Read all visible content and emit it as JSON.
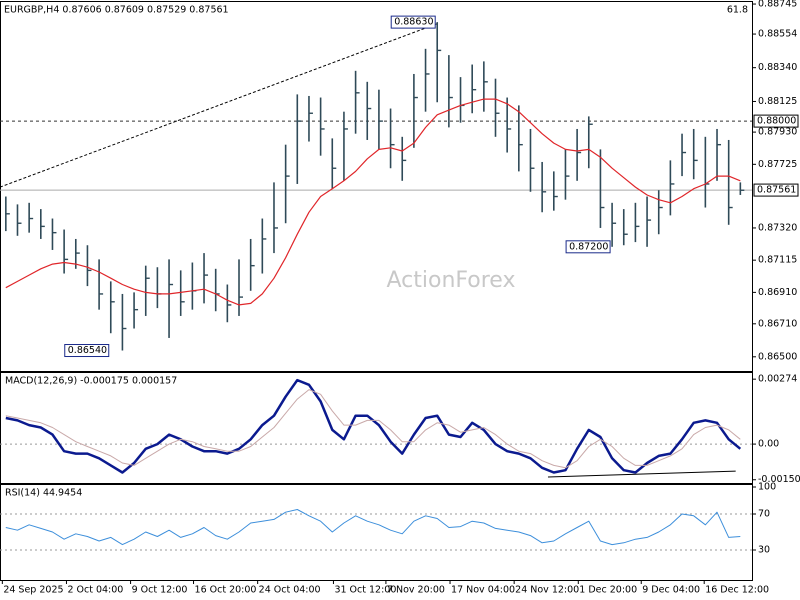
{
  "header": "EURGBP,H4 0.87606 0.87609 0.87529 0.87561",
  "corner_label": "61.8",
  "watermark": "ActionForex",
  "chart_data": [
    {
      "type": "ohlc",
      "color": "#2f4a58",
      "xlim": [
        -0.5,
        64
      ],
      "ylim": [
        0.86416,
        0.88758
      ],
      "yticks": [
        0.88745,
        0.88554,
        {
          "value": 0.8834,
          "label": "0.88340"
        },
        0.88125,
        {
          "value": 0.8793,
          "label": "0.87930"
        },
        0.87725,
        {
          "value": 0.8732,
          "label": "0.87320"
        },
        0.87115,
        {
          "value": 0.8691,
          "label": "0.86910"
        },
        {
          "value": 0.8671,
          "label": "0.86710"
        },
        {
          "value": 0.865,
          "label": "0.86500"
        }
      ],
      "high": [
        0.8752,
        0.8747,
        0.8748,
        0.8744,
        0.8738,
        0.8731,
        0.8725,
        0.8721,
        0.8712,
        0.8698,
        0.869,
        0.8691,
        0.8708,
        0.8707,
        0.8712,
        0.8705,
        0.871,
        0.8716,
        0.8706,
        0.8696,
        0.8712,
        0.8725,
        0.8738,
        0.8761,
        0.8785,
        0.8817,
        0.8816,
        0.8815,
        0.8789,
        0.8806,
        0.8832,
        0.8825,
        0.882,
        0.8808,
        0.879,
        0.883,
        0.8846,
        0.8863,
        0.8842,
        0.8828,
        0.8836,
        0.8838,
        0.8827,
        0.8815,
        0.881,
        0.8795,
        0.8774,
        0.8768,
        0.8782,
        0.8795,
        0.8803,
        0.8782,
        0.8748,
        0.8744,
        0.8748,
        0.8752,
        0.8756,
        0.8775,
        0.8792,
        0.8795,
        0.879,
        0.8795,
        0.8788,
        0.8761
      ],
      "low": [
        0.873,
        0.8727,
        0.8729,
        0.8725,
        0.8718,
        0.8703,
        0.8706,
        0.8695,
        0.868,
        0.8665,
        0.8654,
        0.8668,
        0.8676,
        0.8681,
        0.8662,
        0.8676,
        0.868,
        0.8684,
        0.8679,
        0.8672,
        0.8676,
        0.8692,
        0.8703,
        0.8716,
        0.8735,
        0.876,
        0.8787,
        0.8778,
        0.8757,
        0.8762,
        0.8792,
        0.8788,
        0.8782,
        0.877,
        0.8762,
        0.8783,
        0.8806,
        0.8812,
        0.8796,
        0.8799,
        0.8805,
        0.8806,
        0.879,
        0.878,
        0.8768,
        0.8755,
        0.8742,
        0.8743,
        0.875,
        0.8762,
        0.877,
        0.8732,
        0.872,
        0.8721,
        0.8723,
        0.872,
        0.8728,
        0.874,
        0.8765,
        0.8763,
        0.8745,
        0.8762,
        0.8734,
        0.8753
      ],
      "close": [
        0.8741,
        0.8735,
        0.8738,
        0.8733,
        0.8729,
        0.8712,
        0.8716,
        0.8705,
        0.869,
        0.8685,
        0.8668,
        0.868,
        0.87,
        0.869,
        0.8696,
        0.8685,
        0.8692,
        0.8702,
        0.869,
        0.8683,
        0.8688,
        0.8708,
        0.8725,
        0.8732,
        0.8765,
        0.88,
        0.8805,
        0.8795,
        0.877,
        0.8795,
        0.8818,
        0.8808,
        0.88,
        0.8785,
        0.8775,
        0.8815,
        0.883,
        0.8845,
        0.8815,
        0.881,
        0.882,
        0.8825,
        0.8805,
        0.8795,
        0.8785,
        0.877,
        0.8755,
        0.8752,
        0.8765,
        0.878,
        0.8798,
        0.8745,
        0.8735,
        0.8728,
        0.8733,
        0.8737,
        0.8745,
        0.876,
        0.878,
        0.8775,
        0.876,
        0.8785,
        0.8745,
        0.8756
      ],
      "series": [
        {
          "color": "#e0262a",
          "values": [
            0.8694,
            0.8698,
            0.8702,
            0.8706,
            0.8709,
            0.871,
            0.8709,
            0.8707,
            0.8704,
            0.87,
            0.8696,
            0.8693,
            0.8691,
            0.869,
            0.869,
            0.8691,
            0.8692,
            0.8693,
            0.869,
            0.8686,
            0.8683,
            0.8684,
            0.869,
            0.87,
            0.8713,
            0.8728,
            0.8742,
            0.8752,
            0.8757,
            0.8762,
            0.8768,
            0.8776,
            0.8782,
            0.8783,
            0.8781,
            0.8786,
            0.8796,
            0.8804,
            0.8807,
            0.881,
            0.8812,
            0.8814,
            0.8814,
            0.8811,
            0.8806,
            0.8799,
            0.8792,
            0.8786,
            0.8782,
            0.8781,
            0.8782,
            0.8777,
            0.877,
            0.8764,
            0.8758,
            0.8753,
            0.875,
            0.8748,
            0.8752,
            0.8757,
            0.876,
            0.8765,
            0.8765,
            0.8762
          ]
        }
      ],
      "levels": [
        {
          "value": 0.88,
          "label": "0.88000",
          "style": "dashed"
        },
        {
          "value": 0.87561,
          "label": "0.87561",
          "style": "solid"
        }
      ],
      "annotations": [
        {
          "x": 37,
          "value": 0.8863,
          "label": "0.88630"
        },
        {
          "x": 52,
          "value": 0.872,
          "label": "0.87200"
        },
        {
          "x": 9,
          "value": 0.8654,
          "label": "0.86540"
        }
      ],
      "trendline": {
        "x": [
          -0.5,
          37
        ],
        "y": [
          0.8758,
          0.8862
        ]
      }
    },
    {
      "type": "line",
      "title": "MACD(12,26,9) -0.000175 0.000157",
      "xlim": [
        -0.5,
        64
      ],
      "ylim": [
        -0.0016,
        0.003
      ],
      "yticks": [
        0.00274,
        {
          "value": 0,
          "label": "0.00"
        },
        -0.001505
      ],
      "dashed_levels": [
        0
      ],
      "series": [
        {
          "color": "#0b1a8f",
          "width": 2.5,
          "values": [
            0.0011,
            0.001,
            0.0008,
            0.0007,
            0.0004,
            -0.0003,
            -0.0004,
            -0.0004,
            -0.0006,
            -0.0009,
            -0.0012,
            -0.0008,
            -0.0002,
            0,
            0.0004,
            0.0002,
            -0.0001,
            -0.0003,
            -0.0003,
            -0.0004,
            -0.0002,
            0.0002,
            0.0008,
            0.0012,
            0.002,
            0.0027,
            0.0025,
            0.0018,
            0.0006,
            0.0002,
            0.0012,
            0.0012,
            0.0008,
            0.0001,
            -0.0004,
            0.0004,
            0.0011,
            0.0012,
            0.0004,
            0.0003,
            0.0009,
            0.0006,
            0,
            -0.0003,
            -0.0004,
            -0.0006,
            -0.001,
            -0.0012,
            -0.0011,
            -0.0002,
            0.0006,
            0.0003,
            -0.0006,
            -0.0011,
            -0.0012,
            -0.0008,
            -0.0005,
            -0.0004,
            0.0002,
            0.0009,
            0.001,
            0.0009,
            0.0002,
            -0.0002
          ]
        },
        {
          "color": "#c9a9a9",
          "width": 1,
          "values": [
            0.0012,
            0.0011,
            0.001,
            0.0009,
            0.0007,
            0.0004,
            0.0001,
            -0.0001,
            -0.0003,
            -0.0005,
            -0.0008,
            -0.0009,
            -0.0006,
            -0.0003,
            0,
            0.0002,
            0.0001,
            -0.0001,
            -0.0002,
            -0.0003,
            -0.0003,
            -0.0001,
            0.0003,
            0.0007,
            0.0013,
            0.0019,
            0.0023,
            0.0021,
            0.0014,
            0.0008,
            0.0008,
            0.001,
            0.001,
            0.0006,
            0.0001,
            0.0001,
            0.0006,
            0.0009,
            0.0008,
            0.0005,
            0.0006,
            0.0007,
            0.0004,
            0,
            -0.0003,
            -0.0004,
            -0.0007,
            -0.0009,
            -0.001,
            -0.0007,
            -0.0001,
            0.0002,
            -0.0001,
            -0.0006,
            -0.0009,
            -0.0009,
            -0.0007,
            -0.0005,
            -0.0002,
            0.0004,
            0.0007,
            0.0008,
            0.0006,
            0.0002
          ]
        }
      ],
      "trendline": {
        "x": [
          46.5,
          62.6
        ],
        "y": [
          -0.00139,
          -0.00114
        ]
      }
    },
    {
      "type": "line",
      "title": "RSI(14) 44.9454",
      "xlim": [
        -0.5,
        64
      ],
      "ylim": [
        0,
        100
      ],
      "yticks": [
        100,
        70,
        30
      ],
      "dashed_levels": [
        70,
        30
      ],
      "series": [
        {
          "color": "#3d8fdb",
          "width": 1,
          "values": [
            55,
            52,
            58,
            54,
            50,
            42,
            48,
            45,
            40,
            44,
            36,
            42,
            50,
            45,
            52,
            44,
            48,
            55,
            46,
            42,
            50,
            60,
            62,
            64,
            72,
            75,
            68,
            62,
            50,
            60,
            68,
            62,
            58,
            52,
            48,
            62,
            68,
            65,
            55,
            56,
            62,
            60,
            54,
            52,
            50,
            46,
            38,
            40,
            48,
            55,
            62,
            40,
            36,
            38,
            42,
            44,
            50,
            58,
            70,
            68,
            58,
            72,
            44,
            45
          ]
        }
      ],
      "xticks": [
        {
          "value": -0.3,
          "label": "24 Sep 2025"
        },
        {
          "value": 5.2,
          "label": "2 Oct 04:00"
        },
        {
          "value": 10.7,
          "label": "9 Oct 12:00"
        },
        {
          "value": 16.1,
          "label": "16 Oct 20:00"
        },
        {
          "value": 21.6,
          "label": "24 Oct 04:00"
        },
        {
          "value": 28.1,
          "label": "31 Oct 12:00"
        },
        {
          "value": 32.6,
          "label": "7 Nov 20:00"
        },
        {
          "value": 38.1,
          "label": "17 Nov 04:00"
        },
        {
          "value": 43.6,
          "label": "24 Nov 12:00"
        },
        {
          "value": 49.1,
          "label": "1 Dec 20:00"
        },
        {
          "value": 54.5,
          "label": "9 Dec 04:00"
        },
        {
          "value": 59.9,
          "label": "16 Dec 12:00"
        }
      ]
    }
  ]
}
